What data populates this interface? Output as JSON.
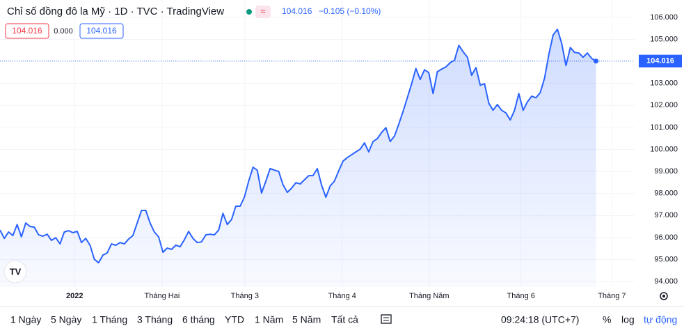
{
  "header": {
    "title": "Chỉ số đồng đô la Mỹ · 1D · TVC · TradingView",
    "last": "104.016",
    "change": "−0.105 (−0.10%)",
    "boxes": [
      "104.016",
      "0.000",
      "104.016"
    ]
  },
  "chart_data": {
    "type": "area",
    "color": "#2962ff",
    "grid": true,
    "price_label": "104.016",
    "x": [
      0,
      1,
      2,
      3,
      4,
      5,
      6,
      7,
      8,
      9,
      10,
      11,
      12,
      13,
      14,
      15,
      16,
      17,
      18,
      19,
      20,
      21,
      22,
      23,
      24,
      25,
      26,
      27,
      28,
      29,
      30,
      31,
      32,
      33,
      34,
      35,
      36,
      37,
      38,
      39,
      40,
      41,
      42,
      43,
      44,
      45,
      46,
      47,
      48,
      49,
      50,
      51,
      52,
      53,
      54,
      55,
      56,
      57,
      58,
      59,
      60,
      61,
      62,
      63,
      64,
      65,
      66,
      67,
      68,
      69,
      70,
      71,
      72,
      73,
      74,
      75,
      76,
      77,
      78,
      79,
      80,
      81,
      82,
      83,
      84,
      85,
      86,
      87,
      88,
      89,
      90,
      91,
      92,
      93,
      94,
      95,
      96,
      97,
      98,
      99,
      100,
      101,
      102,
      103,
      104,
      105,
      106,
      107,
      108,
      109,
      110,
      111,
      112,
      113,
      114,
      115,
      116,
      117,
      118,
      119,
      120,
      121,
      122,
      123,
      124,
      125,
      126,
      127,
      128,
      129,
      130,
      131,
      132,
      133,
      134,
      135,
      136,
      137,
      138,
      139
    ],
    "values": [
      96.34,
      95.96,
      96.25,
      96.09,
      96.59,
      96.03,
      96.66,
      96.5,
      96.47,
      96.12,
      96.06,
      96.15,
      95.87,
      95.99,
      95.71,
      96.25,
      96.31,
      96.22,
      96.28,
      95.77,
      95.96,
      95.65,
      95.01,
      94.85,
      95.2,
      95.3,
      95.71,
      95.65,
      95.77,
      95.71,
      95.93,
      96.09,
      96.66,
      97.23,
      97.23,
      96.66,
      96.25,
      96.03,
      95.33,
      95.52,
      95.46,
      95.65,
      95.58,
      95.9,
      96.28,
      95.96,
      95.77,
      95.8,
      96.12,
      96.15,
      96.12,
      96.34,
      97.1,
      96.59,
      96.82,
      97.42,
      97.42,
      97.83,
      98.56,
      99.19,
      99.06,
      98.02,
      98.56,
      99.13,
      99.06,
      99.0,
      98.4,
      98.05,
      98.24,
      98.49,
      98.43,
      98.62,
      98.81,
      98.81,
      99.13,
      98.37,
      97.83,
      98.34,
      98.56,
      99.03,
      99.47,
      99.63,
      99.76,
      99.89,
      100.01,
      100.3,
      99.89,
      100.36,
      100.49,
      100.77,
      100.99,
      100.36,
      100.61,
      101.15,
      101.72,
      102.35,
      102.99,
      103.68,
      103.18,
      103.62,
      103.49,
      102.54,
      103.53,
      103.65,
      103.75,
      103.94,
      104.06,
      104.73,
      104.44,
      104.19,
      103.37,
      103.72,
      102.92,
      102.99,
      102.1,
      101.78,
      102.04,
      101.78,
      101.66,
      101.34,
      101.78,
      102.54,
      101.78,
      102.16,
      102.42,
      102.35,
      102.58,
      103.24,
      104.32,
      105.2,
      105.46,
      104.82,
      103.81,
      104.63,
      104.41,
      104.38,
      104.19,
      104.38,
      104.13,
      104.016
    ],
    "xlim": [
      0,
      148
    ],
    "xticks": [
      {
        "value": 17.4,
        "label": "2022"
      },
      {
        "value": 37.8,
        "label": "Tháng Hai"
      },
      {
        "value": 57.1,
        "label": "Tháng 3"
      },
      {
        "value": 79.8,
        "label": "Tháng 4"
      },
      {
        "value": 100.1,
        "label": "Tháng Năm"
      },
      {
        "value": 121.5,
        "label": "Tháng 6"
      },
      {
        "value": 142.7,
        "label": "Tháng 7"
      }
    ],
    "ylim": [
      93.75,
      106.79
    ],
    "yticks": [
      {
        "value": 94,
        "label": "94.000"
      },
      {
        "value": 95,
        "label": "95.000"
      },
      {
        "value": 96,
        "label": "96.000"
      },
      {
        "value": 97,
        "label": "97.000"
      },
      {
        "value": 98,
        "label": "98.000"
      },
      {
        "value": 99,
        "label": "99.000"
      },
      {
        "value": 100,
        "label": "100.000"
      },
      {
        "value": 101,
        "label": "101.000"
      },
      {
        "value": 102,
        "label": "102.000"
      },
      {
        "value": 103,
        "label": "103.000"
      },
      {
        "value": 104,
        "label": "104.000"
      },
      {
        "value": 105,
        "label": "105.000"
      },
      {
        "value": 106,
        "label": "106.000"
      }
    ]
  },
  "toolbar": {
    "ranges": [
      "1 Ngày",
      "5 Ngày",
      "1 Tháng",
      "3 Tháng",
      "6 tháng",
      "YTD",
      "1 Năm",
      "5 Năm",
      "Tất cả"
    ],
    "time": "09:24:18 (UTC+7)",
    "options": [
      "%",
      "log",
      "tự động"
    ]
  }
}
